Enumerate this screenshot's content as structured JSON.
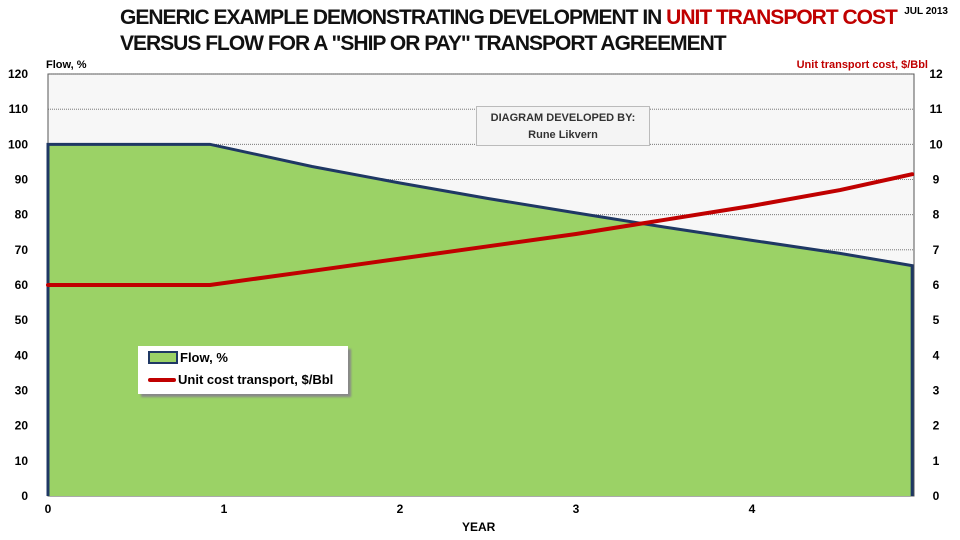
{
  "title": {
    "line1_prefix": "GENERIC EXAMPLE DEMONSTRATING DEVELOPMENT IN ",
    "line1_highlight": "UNIT TRANSPORT COST",
    "line2": "VERSUS FLOW FOR A \"SHIP OR PAY\" TRANSPORT AGREEMENT"
  },
  "date": "JUL 2013",
  "credit": {
    "line1": "DIAGRAM DEVELOPED BY:",
    "line2": "Rune Likvern"
  },
  "colors": {
    "flow_fill": "#9bd266",
    "flow_line": "#1f3864",
    "cost_line": "#c00000",
    "highlight": "#c00000"
  },
  "chart_data": {
    "type": "area+line",
    "xlabel": "YEAR",
    "ylabel_left": "Flow, %",
    "ylabel_right": "Unit transport  cost, $/Bbl",
    "xlim": [
      0,
      4.91
    ],
    "ylim_left": [
      0,
      120
    ],
    "ylim_right": [
      0,
      12
    ],
    "x_ticks": [
      "0",
      "1",
      "2",
      "3",
      "4"
    ],
    "y_ticks_left": [
      "0",
      "10",
      "20",
      "30",
      "40",
      "50",
      "60",
      "70",
      "80",
      "90",
      "100",
      "110",
      "120"
    ],
    "y_ticks_right": [
      "0",
      "1",
      "2",
      "3",
      "4",
      "5",
      "6",
      "7",
      "8",
      "9",
      "10",
      "11",
      "12"
    ],
    "grid": "horizontal dotted",
    "legend_position": "center-left",
    "series": [
      {
        "name": "Flow, %",
        "axis": "left",
        "kind": "area",
        "x": [
          0,
          0.92,
          1.5,
          2,
          2.5,
          3,
          3.5,
          4,
          4.5,
          4.91
        ],
        "y": [
          100,
          100,
          93.7,
          89,
          84.6,
          80.5,
          76.5,
          72.7,
          69,
          65.5
        ]
      },
      {
        "name": "Unit cost transport,  $/Bbl",
        "axis": "right",
        "kind": "line",
        "x": [
          0,
          0.92,
          1.5,
          2,
          2.5,
          3,
          3.5,
          4,
          4.5,
          4.91
        ],
        "y": [
          6,
          6,
          6.4,
          6.75,
          7.1,
          7.45,
          7.85,
          8.25,
          8.7,
          9.15
        ]
      }
    ]
  }
}
